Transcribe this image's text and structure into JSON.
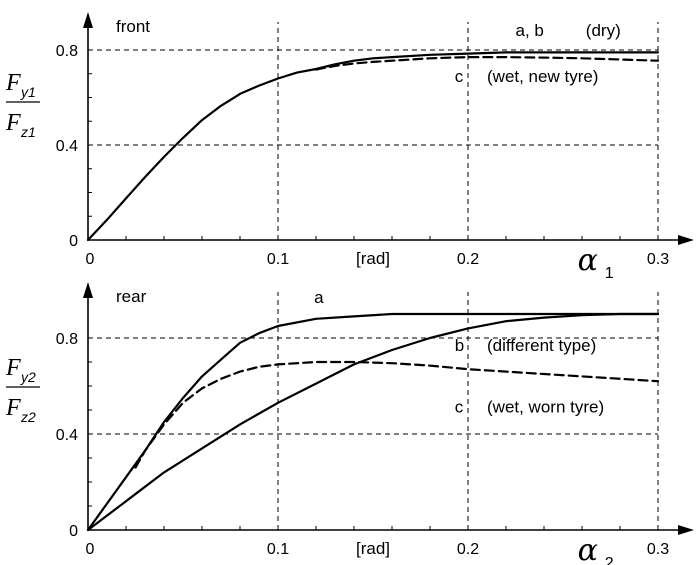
{
  "chart_data": [
    {
      "type": "line",
      "panel_label": "front",
      "y_label": {
        "main": "F",
        "num_sub": "y1",
        "den_sub": "z1"
      },
      "x_label": {
        "symbol": "α",
        "sub": "1"
      },
      "x_unit": "[rad]",
      "xlim": [
        0,
        0.3
      ],
      "ylim": [
        0,
        0.8
      ],
      "x_ticks": [
        "0",
        "0.1",
        "0.2",
        "0.3"
      ],
      "y_ticks": [
        "0",
        "0.4",
        "0.8"
      ],
      "grid": "dashed",
      "series": [
        {
          "name": "a, b",
          "style": "solid",
          "x": [
            0,
            0.01,
            0.02,
            0.03,
            0.04,
            0.05,
            0.06,
            0.07,
            0.08,
            0.09,
            0.1,
            0.11,
            0.12,
            0.13,
            0.14,
            0.15,
            0.16,
            0.18,
            0.2,
            0.22,
            0.24,
            0.26,
            0.28,
            0.3
          ],
          "y": [
            0,
            0.085,
            0.175,
            0.265,
            0.35,
            0.43,
            0.505,
            0.565,
            0.615,
            0.65,
            0.68,
            0.705,
            0.72,
            0.74,
            0.755,
            0.765,
            0.77,
            0.78,
            0.785,
            0.79,
            0.79,
            0.79,
            0.79,
            0.79
          ]
        },
        {
          "name": "c",
          "style": "dashed",
          "x": [
            0.12,
            0.13,
            0.14,
            0.15,
            0.16,
            0.18,
            0.2,
            0.22,
            0.24,
            0.26,
            0.28,
            0.3
          ],
          "y": [
            0.718,
            0.733,
            0.743,
            0.75,
            0.755,
            0.765,
            0.77,
            0.77,
            0.768,
            0.765,
            0.76,
            0.755
          ]
        }
      ],
      "annotations": [
        {
          "text": "a, b",
          "x": 0.225,
          "y": 0.86
        },
        {
          "text": "(dry)",
          "x": 0.262,
          "y": 0.86
        },
        {
          "text": "c",
          "x": 0.193,
          "y": 0.665
        },
        {
          "text": "(wet, new tyre)",
          "x": 0.21,
          "y": 0.665
        }
      ]
    },
    {
      "type": "line",
      "panel_label": "rear",
      "y_label": {
        "main": "F",
        "num_sub": "y2",
        "den_sub": "z2"
      },
      "x_label": {
        "symbol": "α",
        "sub": "2"
      },
      "x_unit": "[rad]",
      "xlim": [
        0,
        0.3
      ],
      "ylim": [
        0,
        0.8
      ],
      "x_ticks": [
        "0",
        "0.1",
        "0.2",
        "0.3"
      ],
      "y_ticks": [
        "0",
        "0.4",
        "0.8"
      ],
      "grid": "dashed",
      "series": [
        {
          "name": "a",
          "style": "solid",
          "x": [
            0,
            0.01,
            0.02,
            0.03,
            0.04,
            0.05,
            0.06,
            0.07,
            0.08,
            0.09,
            0.1,
            0.12,
            0.14,
            0.16,
            0.18,
            0.2,
            0.22,
            0.24,
            0.26,
            0.28,
            0.3
          ],
          "y": [
            0,
            0.11,
            0.22,
            0.33,
            0.45,
            0.55,
            0.64,
            0.71,
            0.78,
            0.82,
            0.85,
            0.88,
            0.89,
            0.9,
            0.9,
            0.9,
            0.9,
            0.9,
            0.9,
            0.9,
            0.9
          ]
        },
        {
          "name": "b",
          "style": "solid",
          "x": [
            0,
            0.02,
            0.04,
            0.06,
            0.08,
            0.1,
            0.12,
            0.14,
            0.16,
            0.18,
            0.2,
            0.22,
            0.24,
            0.26,
            0.28,
            0.3
          ],
          "y": [
            0,
            0.12,
            0.24,
            0.34,
            0.44,
            0.53,
            0.61,
            0.69,
            0.75,
            0.8,
            0.84,
            0.87,
            0.885,
            0.895,
            0.9,
            0.9
          ]
        },
        {
          "name": "c",
          "style": "dashed",
          "x": [
            0.025,
            0.03,
            0.04,
            0.05,
            0.06,
            0.07,
            0.08,
            0.09,
            0.1,
            0.12,
            0.14,
            0.16,
            0.18,
            0.2,
            0.22,
            0.24,
            0.26,
            0.28,
            0.3
          ],
          "y": [
            0.26,
            0.33,
            0.44,
            0.53,
            0.59,
            0.63,
            0.66,
            0.68,
            0.69,
            0.7,
            0.7,
            0.695,
            0.685,
            0.67,
            0.66,
            0.65,
            0.64,
            0.63,
            0.62
          ]
        }
      ],
      "annotations": [
        {
          "text": "a",
          "x": 0.119,
          "y": 0.945
        },
        {
          "text": "b",
          "x": 0.193,
          "y": 0.745
        },
        {
          "text": "(different type)",
          "x": 0.21,
          "y": 0.745
        },
        {
          "text": "c",
          "x": 0.193,
          "y": 0.49
        },
        {
          "text": "(wet, worn tyre)",
          "x": 0.21,
          "y": 0.49
        }
      ]
    }
  ]
}
